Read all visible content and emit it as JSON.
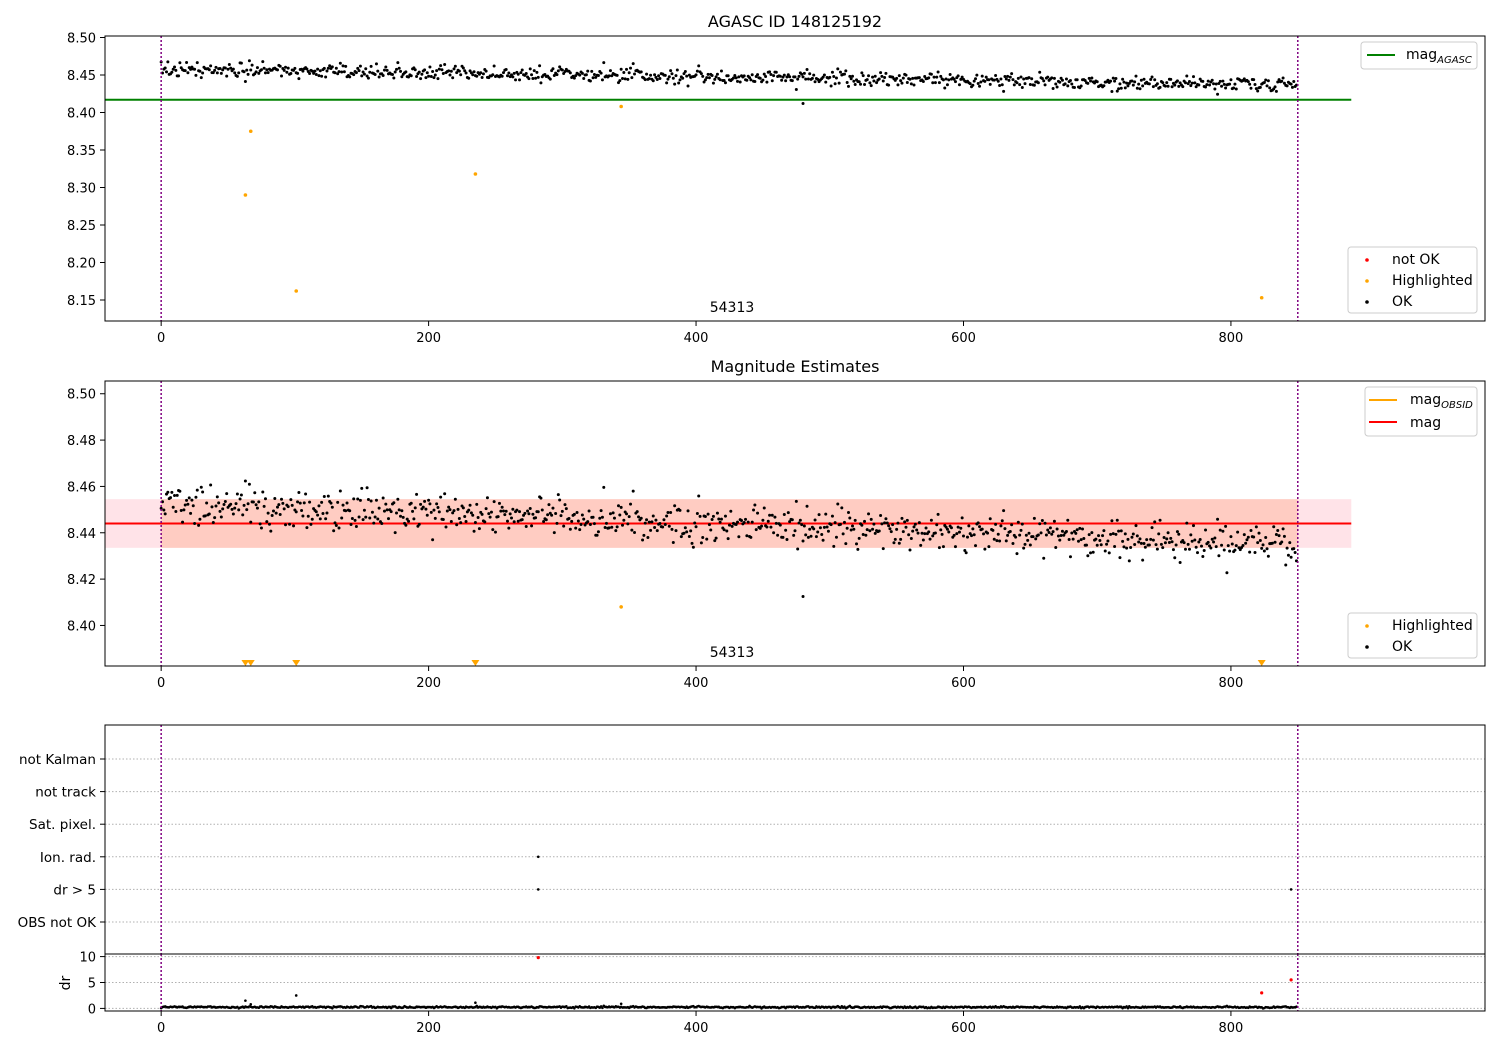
{
  "chart_data": [
    {
      "type": "scatter",
      "title": "AGASC ID 148125192",
      "xlim": [
        -42,
        990
      ],
      "ylim": [
        8.122,
        8.502
      ],
      "xticks": [
        0,
        200,
        400,
        600,
        800
      ],
      "xtick_labels": [
        "0",
        "200",
        "400",
        "600",
        "800"
      ],
      "yticks": [
        8.15,
        8.2,
        8.25,
        8.3,
        8.35,
        8.4,
        8.45,
        8.5
      ],
      "ytick_labels": [
        "8.15",
        "8.20",
        "8.25",
        "8.30",
        "8.35",
        "8.40",
        "8.45",
        "8.50"
      ],
      "grid": false,
      "obs_boundaries": [
        0,
        850
      ],
      "annotation": {
        "text": "54313",
        "x": 425
      },
      "lines": [
        {
          "name": "mag_AGASC",
          "label_main": "mag",
          "label_sub": "AGASC",
          "y": 8.417,
          "x": [
            -42,
            890
          ],
          "color": "#008000"
        }
      ],
      "ok_trend": {
        "start": 8.458,
        "end": 8.436,
        "scatter": 0.0085,
        "n": 850
      },
      "highlighted": [
        {
          "x": 63,
          "y": 8.29
        },
        {
          "x": 67,
          "y": 8.375
        },
        {
          "x": 101,
          "y": 8.162
        },
        {
          "x": 235,
          "y": 8.318
        },
        {
          "x": 344,
          "y": 8.408
        },
        {
          "x": 823,
          "y": 8.153
        }
      ],
      "extra_ok": [
        {
          "x": 480,
          "y": 8.412
        }
      ],
      "legend_lines_position": "top-right",
      "legend_points_position": "bottom-right",
      "legend_points": [
        {
          "label": "not OK",
          "color": "#ff0000"
        },
        {
          "label": "Highlighted",
          "color": "#ffa500"
        },
        {
          "label": "OK",
          "color": "#000000"
        }
      ]
    },
    {
      "type": "scatter",
      "title": "Magnitude Estimates",
      "xlim": [
        -42,
        990
      ],
      "ylim": [
        8.3825,
        8.5055
      ],
      "xticks": [
        0,
        200,
        400,
        600,
        800
      ],
      "xtick_labels": [
        "0",
        "200",
        "400",
        "600",
        "800"
      ],
      "yticks": [
        8.4,
        8.42,
        8.44,
        8.46,
        8.48,
        8.5
      ],
      "ytick_labels": [
        "8.40",
        "8.42",
        "8.44",
        "8.46",
        "8.48",
        "8.50"
      ],
      "grid": false,
      "obs_boundaries": [
        0,
        850
      ],
      "annotation": {
        "text": "54313",
        "x": 425
      },
      "mag_mean": 8.444,
      "mag_band": [
        8.4335,
        8.4545
      ],
      "mag_obsid": 8.444,
      "band_x": [
        -42,
        890
      ],
      "ok_trend": {
        "start": 8.4525,
        "end": 8.4345,
        "scatter": 0.0075,
        "n": 850
      },
      "highlighted": [
        {
          "x": 344,
          "y": 8.408
        }
      ],
      "extra_ok": [
        {
          "x": 480,
          "y": 8.4125
        }
      ],
      "offscale_markers_x": [
        63,
        67,
        101,
        235,
        823
      ],
      "legend_lines_position": "top-right",
      "legend_lines": [
        {
          "label_main": "mag",
          "label_sub": "OBSID",
          "color": "#ffa500"
        },
        {
          "label_main": "mag",
          "label_sub": "",
          "color": "#ff0000"
        }
      ],
      "legend_points_position": "bottom-right",
      "legend_points": [
        {
          "label": "Highlighted",
          "color": "#ffa500"
        },
        {
          "label": "OK",
          "color": "#000000"
        }
      ]
    },
    {
      "type": "scatter",
      "title": "",
      "xlim": [
        -42,
        990
      ],
      "categories": [
        "not Kalman",
        "not track",
        "Sat. pixel.",
        "Ion. rad.",
        "dr > 5",
        "OBS not OK"
      ],
      "obs_boundaries": [
        0,
        850
      ],
      "flag_points": [
        {
          "category": "Ion. rad.",
          "x": 282
        },
        {
          "category": "dr > 5",
          "x": 282
        },
        {
          "category": "dr > 5",
          "x": 845
        }
      ]
    },
    {
      "type": "scatter",
      "title": "",
      "ylabel": "dr",
      "xlim": [
        -42,
        990
      ],
      "ylim": [
        -0.5,
        10.5
      ],
      "xticks": [
        0,
        200,
        400,
        600,
        800
      ],
      "xtick_labels": [
        "0",
        "200",
        "400",
        "600",
        "800"
      ],
      "yticks": [
        0,
        5,
        10
      ],
      "ytick_labels": [
        "0",
        "5",
        "10"
      ],
      "grid": true,
      "obs_boundaries": [
        0,
        850
      ],
      "baseline": {
        "mean": 0.25,
        "scatter": 0.08,
        "n": 850
      },
      "spikes": [
        {
          "x": 63,
          "y": 1.5
        },
        {
          "x": 67,
          "y": 0.8
        },
        {
          "x": 101,
          "y": 2.5
        },
        {
          "x": 235,
          "y": 1.1
        },
        {
          "x": 344,
          "y": 0.9
        }
      ],
      "red_points": [
        {
          "x": 282,
          "y": 9.8
        },
        {
          "x": 823,
          "y": 3.0
        },
        {
          "x": 845,
          "y": 5.5
        }
      ]
    }
  ]
}
